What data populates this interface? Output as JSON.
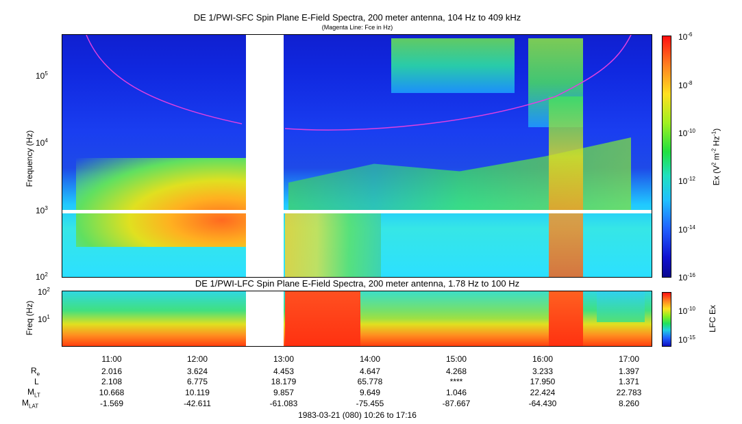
{
  "panel_sfc": {
    "title": "DE 1/PWI-SFC  Spin Plane E-Field Spectra, 200 meter antenna, 104 Hz to 409 kHz",
    "subtitle": "(Magenta Line: Fce in Hz)",
    "ylabel": "Frequency (Hz)",
    "yticks": [
      "10",
      "10",
      "10",
      "10"
    ],
    "yticks_exp": [
      "5",
      "4",
      "3",
      "2"
    ],
    "colorbar_label": "Ex (V",
    "colorbar_label_tail": "m",
    "colorbar_label_end": "Hz",
    "colorbar_ticks": [
      "10",
      "10",
      "10",
      "10",
      "10",
      "10"
    ],
    "colorbar_ticks_exp": [
      "-6",
      "-8",
      "-10",
      "-12",
      "-14",
      "-16"
    ]
  },
  "panel_lfc": {
    "title": "DE 1/PWI-LFC  Spin Plane E-Field Spectra, 200 meter antenna, 1.78 Hz to 100 Hz",
    "ylabel": "Freq (Hz)",
    "yticks": [
      "10",
      "10"
    ],
    "yticks_exp": [
      "2",
      "1"
    ],
    "colorbar_label": "LFC Ex",
    "colorbar_ticks": [
      "10",
      "10"
    ],
    "colorbar_ticks_exp": [
      "-10",
      "-15"
    ]
  },
  "ephemeris": {
    "times": [
      "11:00",
      "12:00",
      "13:00",
      "14:00",
      "15:00",
      "16:00",
      "17:00"
    ],
    "rows": [
      {
        "label": "R",
        "sub": "e",
        "values": [
          "2.016",
          "3.624",
          "4.453",
          "4.647",
          "4.268",
          "3.233",
          "1.397"
        ]
      },
      {
        "label": "L",
        "sub": "",
        "values": [
          "2.108",
          "6.775",
          "18.179",
          "65.778",
          "****",
          "17.950",
          "1.371"
        ]
      },
      {
        "label": "M",
        "sub": "LT",
        "values": [
          "10.668",
          "10.119",
          "9.857",
          "9.649",
          "1.046",
          "22.424",
          "22.783"
        ]
      },
      {
        "label": "M",
        "sub": "LAT",
        "values": [
          "-1.569",
          "-42.611",
          "-61.083",
          "-75.455",
          "-87.667",
          "-64.430",
          "8.260"
        ]
      }
    ],
    "footer": "1983-03-21 (080) 10:26 to 17:16"
  },
  "chart_data": [
    {
      "type": "heatmap",
      "title": "DE 1/PWI-SFC  Spin Plane E-Field Spectra, 200 meter antenna, 104 Hz to 409 kHz",
      "subtitle": "(Magenta Line: Fce in Hz)",
      "ylabel": "Frequency (Hz)",
      "yscale": "log",
      "ylim": [
        100,
        409000
      ],
      "xlim": [
        "10:26",
        "17:16"
      ],
      "colorbar": {
        "label": "Ex (V^2 m^-2 Hz^-1)",
        "scale": "log",
        "range": [
          1e-16,
          1e-06
        ]
      },
      "data_gaps": [
        [
          "12:35",
          "13:00"
        ]
      ],
      "fce_line": {
        "color": "#e040e0",
        "points": [
          {
            "t": "10:45",
            "f": 409000
          },
          {
            "t": "11:00",
            "f": 150000
          },
          {
            "t": "11:30",
            "f": 50000
          },
          {
            "t": "12:00",
            "f": 28000
          },
          {
            "t": "12:30",
            "f": 20000
          },
          {
            "t": "13:00",
            "f": 17000
          },
          {
            "t": "13:30",
            "f": 15500
          },
          {
            "t": "14:00",
            "f": 15500
          },
          {
            "t": "14:30",
            "f": 17000
          },
          {
            "t": "15:00",
            "f": 20000
          },
          {
            "t": "15:30",
            "f": 28000
          },
          {
            "t": "16:00",
            "f": 45000
          },
          {
            "t": "16:30",
            "f": 90000
          },
          {
            "t": "17:00",
            "f": 250000
          },
          {
            "t": "17:12",
            "f": 409000
          }
        ]
      }
    },
    {
      "type": "heatmap",
      "title": "DE 1/PWI-LFC  Spin Plane E-Field Spectra, 200 meter antenna, 1.78 Hz to 100 Hz",
      "ylabel": "Freq (Hz)",
      "yscale": "log",
      "ylim": [
        1.78,
        100
      ],
      "xlim": [
        "10:26",
        "17:16"
      ],
      "colorbar": {
        "label": "LFC Ex",
        "scale": "log"
      },
      "data_gaps": [
        [
          "12:35",
          "13:00"
        ]
      ]
    }
  ]
}
